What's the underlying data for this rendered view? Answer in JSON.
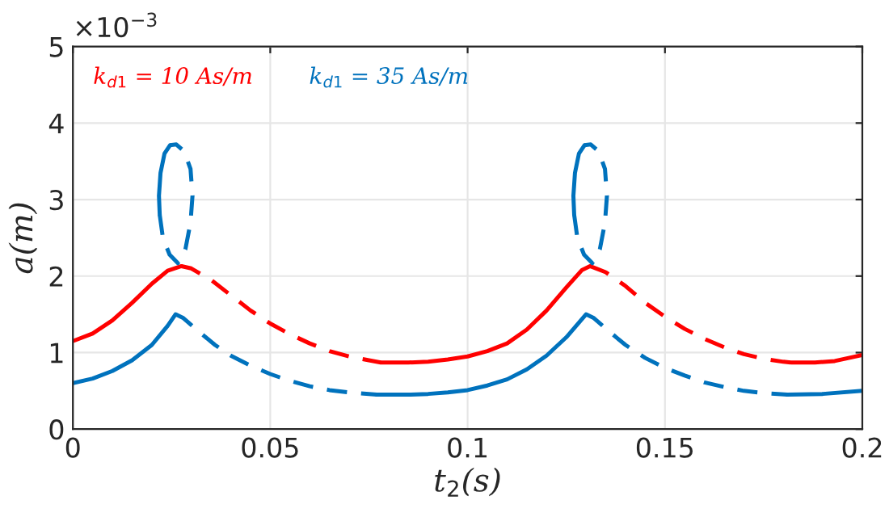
{
  "chart_data": {
    "type": "line",
    "xlabel": "t$_{2}$(s)",
    "ylabel": "a(m)",
    "xlim": [
      0,
      0.2
    ],
    "xticks": [
      0,
      0.05,
      0.1,
      0.15,
      0.2
    ],
    "ylim": [
      0,
      5
    ],
    "yticks": [
      0,
      1,
      2,
      3,
      4,
      5
    ],
    "grid": true,
    "legend": "top left",
    "marker": "none",
    "annotations": [
      "×10$^{−3}$"
    ],
    "series": [
      {
        "name": "k$_{d1}$ = 10 As/m",
        "color": "#ff0000",
        "line_style": "solid",
        "x": [
          0,
          0.005,
          0.01,
          0.015,
          0.02,
          0.024,
          0.0275
        ],
        "values": [
          1.15,
          1.25,
          1.42,
          1.65,
          1.9,
          2.07,
          2.13
        ]
      },
      {
        "name": "k$_{d1}$ = 35 As/m",
        "color": "#0072bd",
        "line_style": "solid",
        "x": [
          0,
          0.005,
          0.01,
          0.015,
          0.02,
          0.024,
          0.026
        ],
        "values": [
          0.6,
          0.66,
          0.76,
          0.9,
          1.1,
          1.35,
          1.5
        ]
      },
      {
        "color": "#ff0000",
        "line_style": "dashed",
        "x": [
          0.0275,
          0.03,
          0.035,
          0.04,
          0.045,
          0.05,
          0.055,
          0.06,
          0.065,
          0.07,
          0.075,
          0.078
        ],
        "values": [
          2.13,
          2.1,
          1.95,
          1.75,
          1.55,
          1.38,
          1.24,
          1.12,
          1.02,
          0.95,
          0.9,
          0.87
        ]
      },
      {
        "color": "#ff0000",
        "line_style": "solid",
        "x": [
          0.078,
          0.085,
          0.09,
          0.095,
          0.1,
          0.105,
          0.11,
          0.115,
          0.12,
          0.125,
          0.129,
          0.131
        ],
        "values": [
          0.87,
          0.87,
          0.88,
          0.91,
          0.95,
          1.02,
          1.12,
          1.3,
          1.55,
          1.85,
          2.08,
          2.13
        ]
      },
      {
        "color": "#ff0000",
        "line_style": "dashed",
        "x": [
          0.131,
          0.135,
          0.14,
          0.145,
          0.15,
          0.155,
          0.16,
          0.165,
          0.17,
          0.175,
          0.18,
          0.182
        ],
        "values": [
          2.13,
          2.05,
          1.87,
          1.65,
          1.47,
          1.31,
          1.18,
          1.07,
          0.98,
          0.92,
          0.88,
          0.87
        ]
      },
      {
        "color": "#ff0000",
        "line_style": "solid",
        "x": [
          0.182,
          0.188,
          0.193,
          0.2
        ],
        "values": [
          0.87,
          0.87,
          0.89,
          0.97
        ]
      },
      {
        "color": "#0072bd",
        "line_style": "dashed",
        "x": [
          0.026,
          0.028,
          0.032,
          0.036,
          0.04,
          0.045,
          0.05,
          0.055,
          0.06,
          0.065,
          0.07,
          0.077
        ],
        "values": [
          1.5,
          1.45,
          1.27,
          1.1,
          0.96,
          0.83,
          0.72,
          0.63,
          0.56,
          0.51,
          0.48,
          0.45
        ]
      },
      {
        "color": "#0072bd",
        "line_style": "solid",
        "x": [
          0.077,
          0.085,
          0.09,
          0.095,
          0.1,
          0.105,
          0.11,
          0.115,
          0.12,
          0.125,
          0.13
        ],
        "values": [
          0.45,
          0.45,
          0.46,
          0.48,
          0.51,
          0.57,
          0.65,
          0.78,
          0.96,
          1.2,
          1.5
        ]
      },
      {
        "color": "#0072bd",
        "line_style": "dashed",
        "x": [
          0.13,
          0.132,
          0.136,
          0.14,
          0.145,
          0.15,
          0.155,
          0.16,
          0.165,
          0.17,
          0.175,
          0.181
        ],
        "values": [
          1.5,
          1.45,
          1.27,
          1.1,
          0.93,
          0.8,
          0.7,
          0.61,
          0.55,
          0.5,
          0.47,
          0.45
        ]
      },
      {
        "color": "#0072bd",
        "line_style": "solid",
        "x": [
          0.181,
          0.19,
          0.2
        ],
        "values": [
          0.45,
          0.46,
          0.5
        ]
      },
      {
        "color": "#0072bd",
        "line_style": "solid",
        "x": [
          0.0246,
          0.0232,
          0.0222,
          0.0218,
          0.022
        ],
        "values": [
          3.71,
          3.6,
          3.35,
          3.05,
          2.8
        ]
      },
      {
        "color": "#0072bd",
        "line_style": "dashed",
        "x": [
          0.022,
          0.0228,
          0.0245,
          0.0266,
          0.0285,
          0.0298,
          0.0303,
          0.0298,
          0.0282,
          0.0262,
          0.0246
        ],
        "values": [
          2.8,
          2.5,
          2.28,
          2.17,
          2.35,
          2.7,
          3.05,
          3.4,
          3.63,
          3.72,
          3.71
        ]
      },
      {
        "color": "#0072bd",
        "line_style": "solid",
        "x": [
          0.1296,
          0.1282,
          0.1272,
          0.1268,
          0.127
        ],
        "values": [
          3.71,
          3.6,
          3.35,
          3.05,
          2.8
        ]
      },
      {
        "color": "#0072bd",
        "line_style": "dashed",
        "x": [
          0.127,
          0.1278,
          0.1295,
          0.1316,
          0.1335,
          0.1348,
          0.1353,
          0.1348,
          0.1332,
          0.1312,
          0.1296
        ],
        "values": [
          2.8,
          2.5,
          2.28,
          2.17,
          2.35,
          2.7,
          3.05,
          3.4,
          3.63,
          3.72,
          3.71
        ]
      }
    ]
  }
}
